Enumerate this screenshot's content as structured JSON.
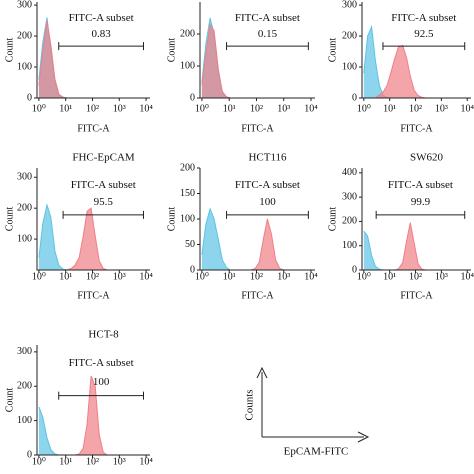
{
  "chart_data": [
    {
      "type": "area",
      "xscale": "log",
      "xlabel": "FITC-A",
      "ylabel": "Count",
      "xlim": [
        0.85,
        14000
      ],
      "xticks": [
        {
          "value": 1,
          "label": "10⁰"
        },
        {
          "value": 10,
          "label": "10¹"
        },
        {
          "value": 100,
          "label": "10²"
        },
        {
          "value": 1000,
          "label": "10³"
        },
        {
          "value": 10000,
          "label": "10⁴"
        }
      ],
      "ylim": [
        0,
        310
      ],
      "yticks": [
        0,
        100,
        200,
        300
      ],
      "x": [
        1,
        1.4,
        2,
        2.8,
        4,
        5.6,
        7.9,
        11,
        16,
        22,
        32,
        45,
        63,
        89,
        126,
        178,
        251,
        355,
        501,
        708,
        1000
      ],
      "series": [
        {
          "color": "#5bc3e6",
          "values": [
            60,
            180,
            260,
            150,
            50,
            10,
            2,
            0,
            0,
            0,
            0,
            0,
            0,
            0,
            0,
            0,
            0,
            0,
            0,
            0,
            0
          ]
        },
        {
          "color": "#ef7f86",
          "values": [
            40,
            150,
            250,
            170,
            60,
            12,
            3,
            0,
            0,
            0,
            0,
            0,
            0,
            0,
            0,
            0,
            0,
            0,
            0,
            0,
            0
          ]
        }
      ],
      "gate": {
        "label": "FITC-A subset",
        "value": 0.83,
        "range": [
          5.5,
          8000
        ]
      }
    },
    {
      "type": "area",
      "xscale": "log",
      "xlabel": "FITC-A",
      "ylabel": "Count",
      "xlim": [
        0.85,
        14000
      ],
      "xticks": [
        {
          "value": 1,
          "label": "10⁰"
        },
        {
          "value": 10,
          "label": "10¹"
        },
        {
          "value": 100,
          "label": "10²"
        },
        {
          "value": 1000,
          "label": "10³"
        },
        {
          "value": 10000,
          "label": "10⁴"
        }
      ],
      "ylim": [
        0,
        300
      ],
      "yticks": [
        0,
        100,
        200
      ],
      "x": [
        1,
        1.4,
        2,
        2.8,
        4,
        5.6,
        7.9,
        11,
        16,
        22,
        32,
        45,
        63,
        89,
        126,
        178,
        251,
        355,
        501,
        708,
        1000
      ],
      "series": [
        {
          "color": "#5bc3e6",
          "values": [
            50,
            170,
            250,
            200,
            80,
            15,
            3,
            0,
            0,
            0,
            0,
            0,
            0,
            0,
            0,
            0,
            0,
            0,
            0,
            0,
            0
          ]
        },
        {
          "color": "#ef7f86",
          "values": [
            40,
            140,
            230,
            210,
            90,
            20,
            4,
            0,
            0,
            0,
            0,
            0,
            0,
            0,
            0,
            0,
            0,
            0,
            0,
            0,
            0
          ]
        }
      ],
      "gate": {
        "label": "FITC-A subset",
        "value": 0.15,
        "range": [
          8,
          8000
        ]
      }
    },
    {
      "type": "area",
      "xscale": "log",
      "xlabel": "FITC-A",
      "ylabel": "Count",
      "xlim": [
        0.85,
        14000
      ],
      "xticks": [
        {
          "value": 1,
          "label": "10⁰"
        },
        {
          "value": 10,
          "label": "10¹"
        },
        {
          "value": 100,
          "label": "10²"
        },
        {
          "value": 1000,
          "label": "10³"
        },
        {
          "value": 10000,
          "label": "10⁴"
        }
      ],
      "ylim": [
        0,
        310
      ],
      "yticks": [
        0,
        100,
        200,
        300
      ],
      "x": [
        1,
        1.4,
        2,
        2.8,
        4,
        5.6,
        7.9,
        11,
        16,
        22,
        32,
        45,
        63,
        89,
        126,
        178,
        251,
        355,
        501,
        708,
        1000
      ],
      "series": [
        {
          "color": "#5bc3e6",
          "values": [
            80,
            200,
            230,
            120,
            40,
            8,
            2,
            0,
            0,
            0,
            0,
            0,
            0,
            0,
            0,
            0,
            0,
            0,
            0,
            0,
            0
          ]
        },
        {
          "color": "#ef7f86",
          "values": [
            0,
            0,
            0,
            0,
            10,
            20,
            40,
            80,
            130,
            165,
            170,
            130,
            70,
            25,
            8,
            2,
            0,
            0,
            0,
            0,
            0
          ]
        }
      ],
      "gate": {
        "label": "FITC-A subset",
        "value": 92.5,
        "range": [
          5.5,
          8000
        ]
      }
    },
    {
      "type": "area",
      "xscale": "log",
      "title": "FHC-EpCAM",
      "xlabel": "FITC-A",
      "ylabel": "Count",
      "xlim": [
        0.85,
        14000
      ],
      "xticks": [
        {
          "value": 1,
          "label": "10⁰"
        },
        {
          "value": 10,
          "label": "10¹"
        },
        {
          "value": 100,
          "label": "10²"
        },
        {
          "value": 1000,
          "label": "10³"
        },
        {
          "value": 10000,
          "label": "10⁴"
        }
      ],
      "ylim": [
        0,
        330
      ],
      "yticks": [
        100,
        200,
        300
      ],
      "x": [
        1,
        1.4,
        2,
        2.8,
        4,
        5.6,
        7.9,
        11,
        16,
        22,
        32,
        45,
        63,
        89,
        126,
        178,
        251,
        355,
        501,
        708,
        1000
      ],
      "series": [
        {
          "color": "#5bc3e6",
          "values": [
            40,
            150,
            210,
            170,
            60,
            15,
            3,
            0,
            0,
            0,
            0,
            0,
            0,
            0,
            0,
            0,
            0,
            0,
            0,
            0,
            0
          ]
        },
        {
          "color": "#ef7f86",
          "values": [
            0,
            0,
            0,
            0,
            0,
            0,
            0,
            0,
            5,
            15,
            40,
            110,
            190,
            200,
            110,
            30,
            5,
            0,
            0,
            0,
            0
          ]
        }
      ],
      "gate": {
        "label": "FITC-A subset",
        "value": 95.5,
        "range": [
          8,
          8000
        ]
      }
    },
    {
      "type": "area",
      "xscale": "log",
      "title": "HCT116",
      "xlabel": "FITC-A",
      "ylabel": "Count",
      "xlim": [
        0.85,
        14000
      ],
      "xticks": [
        {
          "value": 1,
          "label": "10⁰"
        },
        {
          "value": 10,
          "label": "10¹"
        },
        {
          "value": 100,
          "label": "10²"
        },
        {
          "value": 1000,
          "label": "10³"
        },
        {
          "value": 10000,
          "label": "10⁴"
        }
      ],
      "ylim": [
        0,
        200
      ],
      "yticks": [
        0,
        50,
        100,
        150,
        200
      ],
      "x": [
        1,
        1.4,
        2,
        2.8,
        4,
        5.6,
        7.9,
        11,
        16,
        22,
        32,
        45,
        63,
        89,
        126,
        178,
        251,
        355,
        501,
        708,
        1000
      ],
      "series": [
        {
          "color": "#5bc3e6",
          "values": [
            30,
            90,
            120,
            100,
            60,
            20,
            5,
            0,
            0,
            0,
            0,
            0,
            0,
            0,
            0,
            0,
            0,
            0,
            0,
            0,
            0
          ]
        },
        {
          "color": "#ef7f86",
          "values": [
            0,
            0,
            0,
            0,
            0,
            0,
            0,
            0,
            0,
            0,
            0,
            0,
            0,
            3,
            15,
            60,
            100,
            70,
            20,
            3,
            0
          ]
        }
      ],
      "gate": {
        "label": "FITC-A subset",
        "value": 100,
        "range": [
          8,
          8000
        ]
      }
    },
    {
      "type": "area",
      "xscale": "log",
      "title": "SW620",
      "xlabel": "FITC-A",
      "ylabel": "Count",
      "xlim": [
        0.85,
        14000
      ],
      "xticks": [
        {
          "value": 1,
          "label": "10⁰"
        },
        {
          "value": 10,
          "label": "10¹"
        },
        {
          "value": 100,
          "label": "10²"
        },
        {
          "value": 1000,
          "label": "10³"
        },
        {
          "value": 10000,
          "label": "10⁴"
        }
      ],
      "ylim": [
        0,
        420
      ],
      "yticks": [
        0,
        100,
        200,
        300,
        400
      ],
      "x": [
        1,
        1.4,
        2,
        2.8,
        4,
        5.6,
        7.9,
        11,
        16,
        22,
        32,
        45,
        63,
        89,
        126,
        178,
        251,
        355,
        501,
        708,
        1000
      ],
      "series": [
        {
          "color": "#5bc3e6",
          "values": [
            160,
            140,
            60,
            15,
            3,
            0,
            0,
            0,
            0,
            0,
            0,
            0,
            0,
            0,
            0,
            0,
            0,
            0,
            0,
            0,
            0
          ]
        },
        {
          "color": "#ef7f86",
          "values": [
            0,
            0,
            0,
            0,
            0,
            0,
            0,
            0,
            0,
            5,
            30,
            120,
            195,
            110,
            25,
            3,
            0,
            0,
            0,
            0,
            0
          ]
        }
      ],
      "gate": {
        "label": "FITC-A subset",
        "value": 99.9,
        "range": [
          3,
          8000
        ]
      }
    },
    {
      "type": "area",
      "xscale": "log",
      "title": "HCT-8",
      "xlabel": "FITC-A",
      "ylabel": "Count",
      "xlim": [
        0.85,
        14000
      ],
      "xticks": [
        {
          "value": 1,
          "label": "10⁰"
        },
        {
          "value": 10,
          "label": "10¹"
        },
        {
          "value": 100,
          "label": "10²"
        },
        {
          "value": 1000,
          "label": "10³"
        },
        {
          "value": 10000,
          "label": "10⁴"
        }
      ],
      "ylim": [
        0,
        320
      ],
      "yticks": [
        0,
        100,
        200,
        300
      ],
      "x": [
        1,
        1.4,
        2,
        2.8,
        4,
        5.6,
        7.9,
        11,
        16,
        22,
        32,
        45,
        63,
        89,
        126,
        178,
        251,
        355,
        501,
        708,
        1000
      ],
      "series": [
        {
          "color": "#5bc3e6",
          "values": [
            140,
            110,
            50,
            15,
            3,
            0,
            0,
            0,
            0,
            0,
            0,
            0,
            0,
            0,
            0,
            0,
            0,
            0,
            0,
            0,
            0
          ]
        },
        {
          "color": "#ef7f86",
          "values": [
            0,
            0,
            0,
            0,
            0,
            0,
            0,
            0,
            0,
            0,
            3,
            20,
            90,
            230,
            200,
            60,
            8,
            0,
            0,
            0,
            0
          ]
        }
      ],
      "gate": {
        "label": "FITC-A subset",
        "value": 100,
        "range": [
          5.5,
          8000
        ]
      }
    }
  ],
  "schematic": {
    "y_label": "Counts",
    "x_label": "EpCAM-FITC"
  }
}
